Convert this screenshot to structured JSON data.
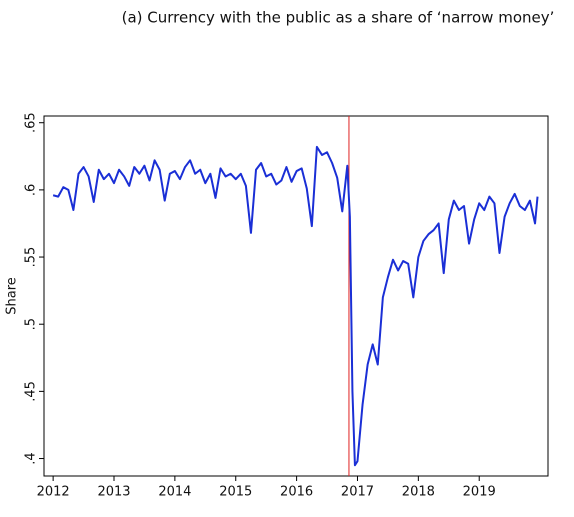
{
  "chart_data": {
    "type": "line",
    "title": "(a) Currency with the public as a share of ‘narrow money’",
    "ylabel": "Share",
    "x": [
      2012.0,
      2012.083,
      2012.167,
      2012.25,
      2012.333,
      2012.417,
      2012.5,
      2012.583,
      2012.667,
      2012.75,
      2012.833,
      2012.917,
      2013.0,
      2013.083,
      2013.167,
      2013.25,
      2013.333,
      2013.417,
      2013.5,
      2013.583,
      2013.667,
      2013.75,
      2013.833,
      2013.917,
      2014.0,
      2014.083,
      2014.167,
      2014.25,
      2014.333,
      2014.417,
      2014.5,
      2014.583,
      2014.667,
      2014.75,
      2014.833,
      2014.917,
      2015.0,
      2015.083,
      2015.167,
      2015.25,
      2015.333,
      2015.417,
      2015.5,
      2015.583,
      2015.667,
      2015.75,
      2015.833,
      2015.917,
      2016.0,
      2016.083,
      2016.167,
      2016.25,
      2016.333,
      2016.417,
      2016.5,
      2016.583,
      2016.667,
      2016.75,
      2016.833,
      2016.875,
      2016.917,
      2016.958,
      2017.0,
      2017.083,
      2017.167,
      2017.25,
      2017.333,
      2017.417,
      2017.5,
      2017.583,
      2017.667,
      2017.75,
      2017.833,
      2017.917,
      2018.0,
      2018.083,
      2018.167,
      2018.25,
      2018.333,
      2018.417,
      2018.5,
      2018.583,
      2018.667,
      2018.75,
      2018.833,
      2018.917,
      2019.0,
      2019.083,
      2019.167,
      2019.25,
      2019.333,
      2019.417,
      2019.5,
      2019.583,
      2019.667,
      2019.75,
      2019.833,
      2019.917,
      2019.958
    ],
    "series": [
      {
        "name": "Share",
        "color": "#1a2fd6",
        "values": [
          0.596,
          0.595,
          0.602,
          0.6,
          0.585,
          0.612,
          0.617,
          0.61,
          0.591,
          0.615,
          0.608,
          0.612,
          0.605,
          0.615,
          0.61,
          0.603,
          0.617,
          0.612,
          0.618,
          0.607,
          0.622,
          0.615,
          0.592,
          0.612,
          0.614,
          0.608,
          0.617,
          0.622,
          0.612,
          0.615,
          0.605,
          0.612,
          0.594,
          0.616,
          0.61,
          0.612,
          0.608,
          0.612,
          0.603,
          0.568,
          0.615,
          0.62,
          0.61,
          0.612,
          0.604,
          0.607,
          0.617,
          0.606,
          0.614,
          0.616,
          0.601,
          0.573,
          0.632,
          0.626,
          0.628,
          0.62,
          0.609,
          0.584,
          0.618,
          0.58,
          0.45,
          0.395,
          0.398,
          0.44,
          0.47,
          0.485,
          0.47,
          0.52,
          0.535,
          0.548,
          0.54,
          0.547,
          0.545,
          0.52,
          0.55,
          0.562,
          0.567,
          0.57,
          0.575,
          0.538,
          0.578,
          0.592,
          0.585,
          0.588,
          0.56,
          0.578,
          0.59,
          0.585,
          0.595,
          0.59,
          0.553,
          0.58,
          0.59,
          0.597,
          0.588,
          0.585,
          0.592,
          0.575,
          0.595
        ]
      }
    ],
    "xlim": [
      2011.85,
      2020.13
    ],
    "ylim": [
      0.387,
      0.655
    ],
    "xticks": [
      2012,
      2013,
      2014,
      2015,
      2016,
      2017,
      2018,
      2019
    ],
    "yticks": [
      {
        "value": 0.4,
        "label": ".4"
      },
      {
        "value": 0.45,
        "label": ".45"
      },
      {
        "value": 0.5,
        "label": ".5"
      },
      {
        "value": 0.55,
        "label": ".55"
      },
      {
        "value": 0.6,
        "label": ".6"
      },
      {
        "value": 0.65,
        "label": ".65"
      }
    ],
    "vline": {
      "x": 2016.86,
      "color": "#e02020"
    }
  }
}
